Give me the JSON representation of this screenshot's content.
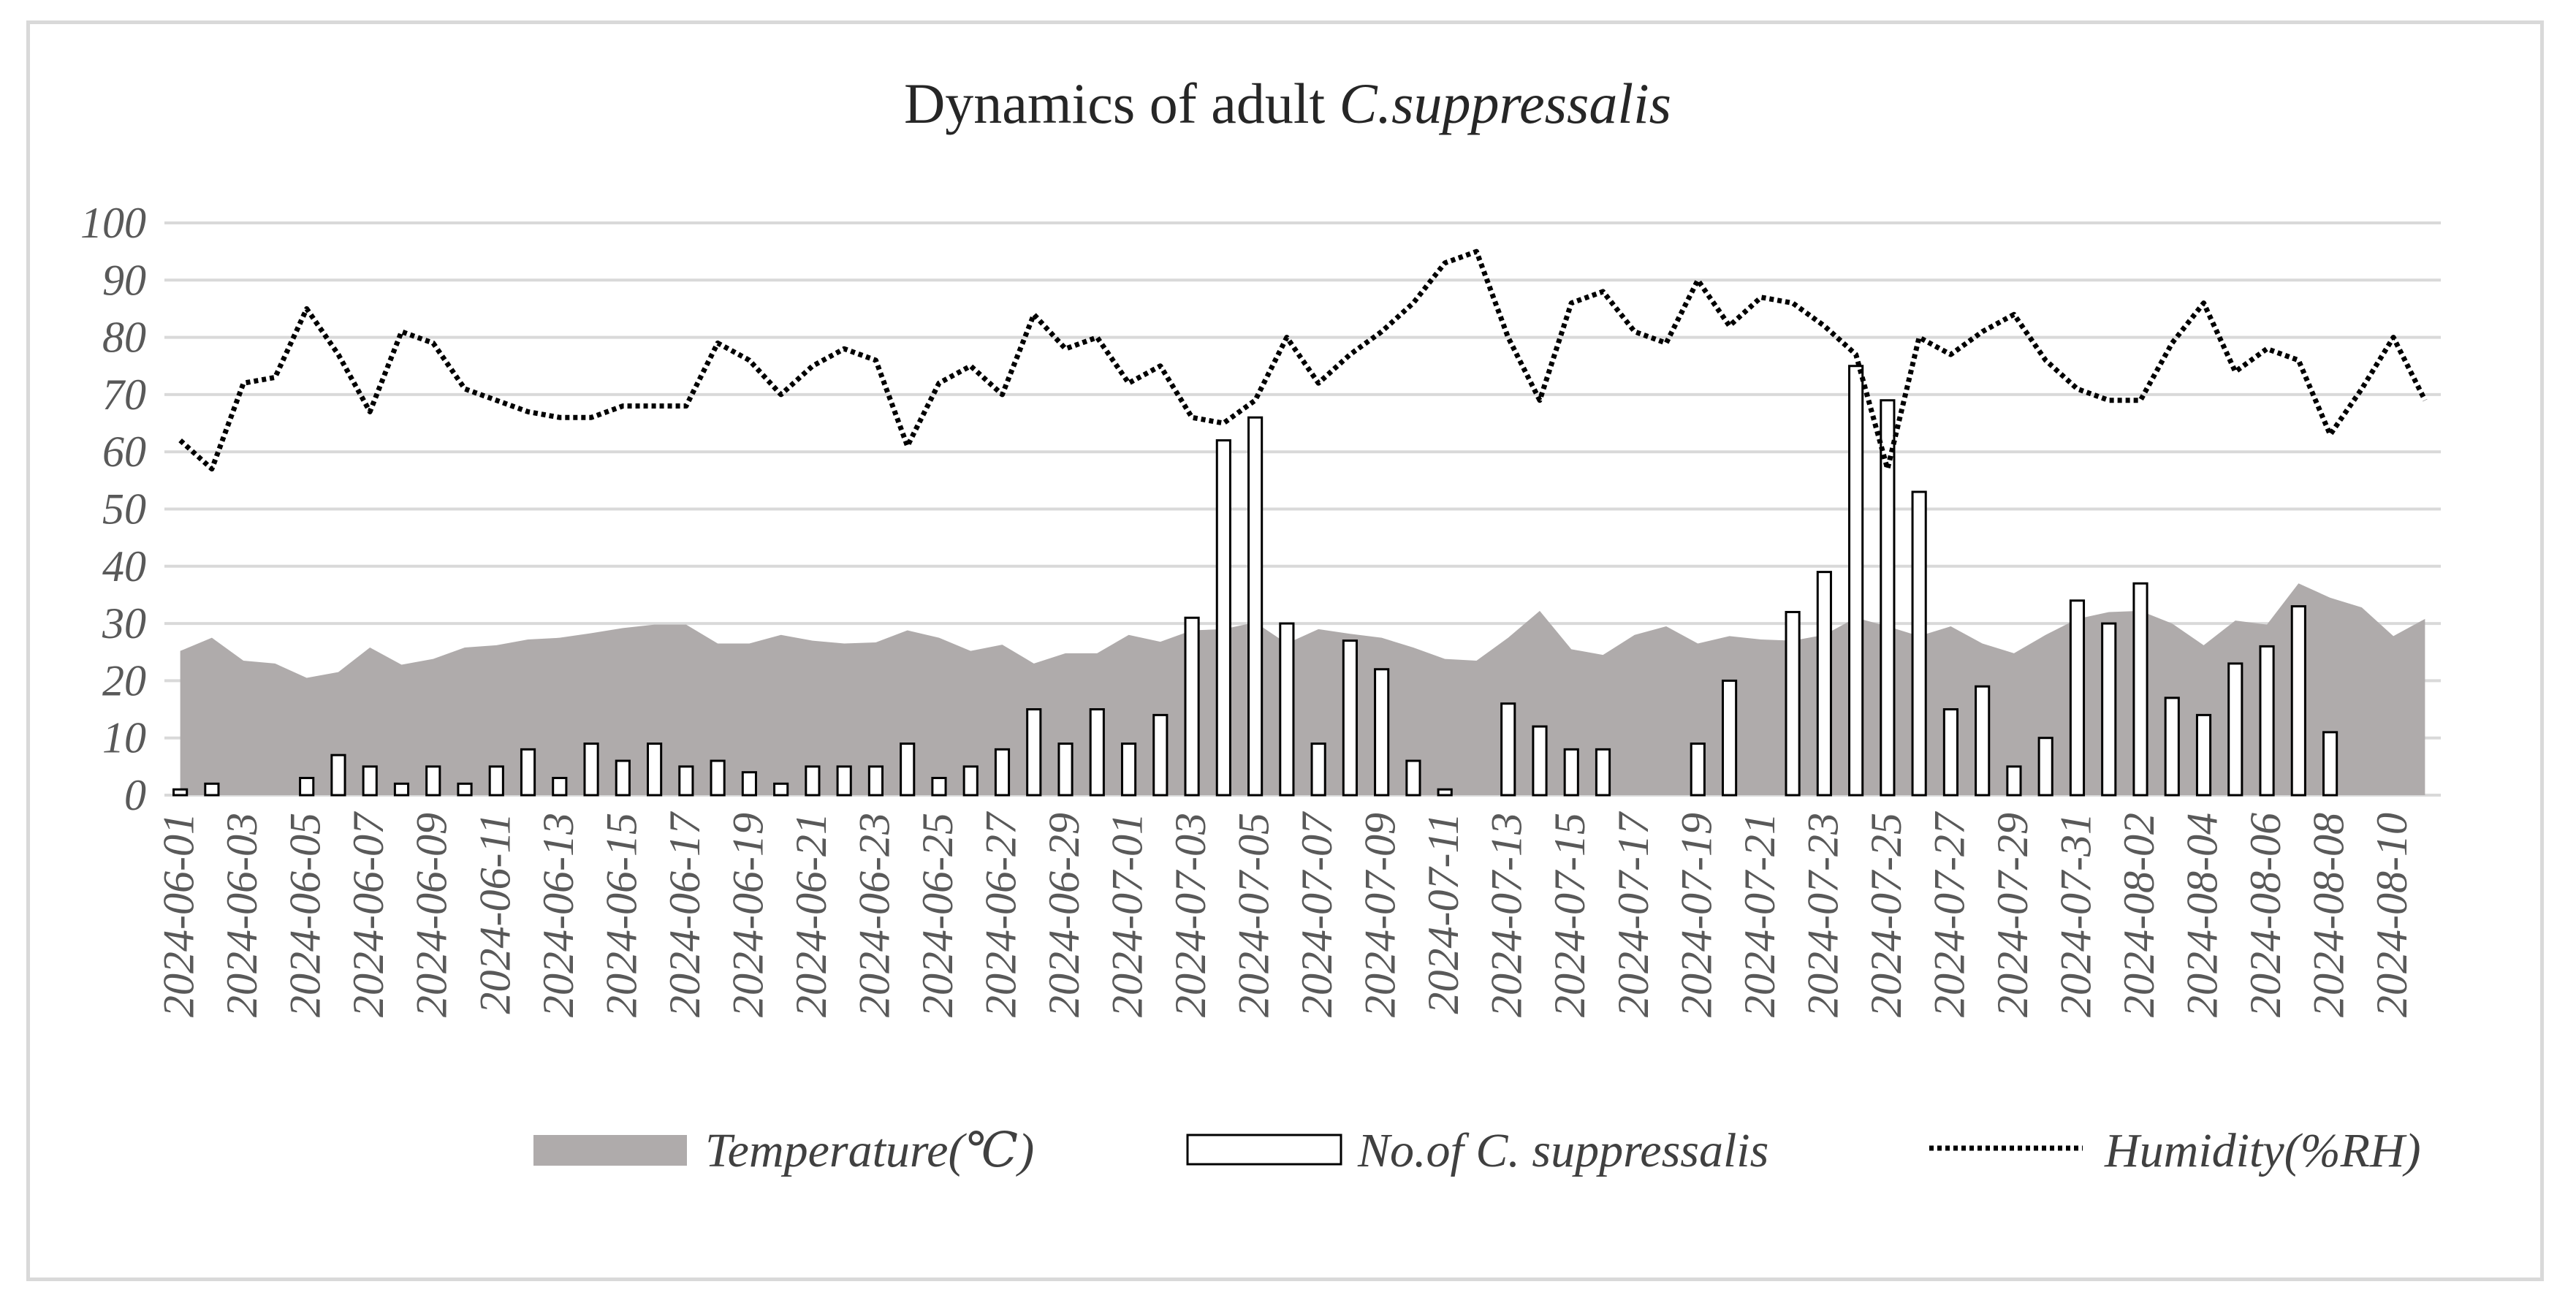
{
  "chart_data": {
    "type": "bar",
    "title_main": "Dynamics of adult ",
    "title_italic": "C.suppressalis",
    "xlabel": "",
    "ylabel": "",
    "ylim": [
      0,
      100
    ],
    "yticks": [
      0,
      10,
      20,
      30,
      40,
      50,
      60,
      70,
      80,
      90,
      100
    ],
    "grid": true,
    "legend_position": "bottom",
    "x": [
      "2024-06-01",
      "2024-06-02",
      "2024-06-03",
      "2024-06-04",
      "2024-06-05",
      "2024-06-06",
      "2024-06-07",
      "2024-06-08",
      "2024-06-09",
      "2024-06-10",
      "2024-06-11",
      "2024-06-12",
      "2024-06-13",
      "2024-06-14",
      "2024-06-15",
      "2024-06-16",
      "2024-06-17",
      "2024-06-18",
      "2024-06-19",
      "2024-06-20",
      "2024-06-21",
      "2024-06-22",
      "2024-06-23",
      "2024-06-24",
      "2024-06-25",
      "2024-06-26",
      "2024-06-27",
      "2024-06-28",
      "2024-06-29",
      "2024-06-30",
      "2024-07-01",
      "2024-07-02",
      "2024-07-03",
      "2024-07-04",
      "2024-07-05",
      "2024-07-06",
      "2024-07-07",
      "2024-07-08",
      "2024-07-09",
      "2024-07-10",
      "2024-07-11",
      "2024-07-12",
      "2024-07-13",
      "2024-07-14",
      "2024-07-15",
      "2024-07-16",
      "2024-07-17",
      "2024-07-18",
      "2024-07-19",
      "2024-07-20",
      "2024-07-21",
      "2024-07-22",
      "2024-07-23",
      "2024-07-24",
      "2024-07-25",
      "2024-07-26",
      "2024-07-27",
      "2024-07-28",
      "2024-07-29",
      "2024-07-30",
      "2024-07-31",
      "2024-08-01",
      "2024-08-02",
      "2024-08-03",
      "2024-08-04",
      "2024-08-05",
      "2024-08-06",
      "2024-08-07",
      "2024-08-08",
      "2024-08-09",
      "2024-08-10",
      "2024-08-11"
    ],
    "x_tick_labels": [
      "2024-06-01",
      "2024-06-03",
      "2024-06-05",
      "2024-06-07",
      "2024-06-09",
      "2024-06-11",
      "2024-06-13",
      "2024-06-15",
      "2024-06-17",
      "2024-06-19",
      "2024-06-21",
      "2024-06-23",
      "2024-06-25",
      "2024-06-27",
      "2024-06-29",
      "2024-07-01",
      "2024-07-03",
      "2024-07-05",
      "2024-07-07",
      "2024-07-09",
      "2024-07-11",
      "2024-07-13",
      "2024-07-15",
      "2024-07-17",
      "2024-07-19",
      "2024-07-21",
      "2024-07-23",
      "2024-07-25",
      "2024-07-27",
      "2024-07-29",
      "2024-07-31",
      "2024-08-02",
      "2024-08-04",
      "2024-08-06",
      "2024-08-08",
      "2024-08-10"
    ],
    "series": [
      {
        "name": "Temperature(℃)",
        "type": "area",
        "color": "#afabab",
        "values": [
          25.2,
          27.5,
          23.5,
          23.0,
          20.5,
          21.5,
          25.8,
          22.8,
          23.8,
          25.8,
          26.2,
          27.2,
          27.5,
          28.3,
          29.2,
          29.8,
          29.8,
          26.5,
          26.5,
          28.0,
          27.0,
          26.5,
          26.7,
          28.8,
          27.5,
          25.2,
          26.3,
          23.0,
          24.8,
          24.8,
          28.0,
          26.8,
          28.8,
          29.0,
          30.2,
          26.5,
          29.0,
          28.2,
          27.5,
          25.8,
          23.8,
          23.5,
          27.5,
          32.2,
          25.5,
          24.5,
          28.0,
          29.5,
          26.5,
          27.8,
          27.2,
          27.0,
          28.0,
          31.0,
          29.5,
          27.8,
          29.5,
          26.5,
          24.8,
          28.0,
          30.8,
          32.0,
          32.2,
          30.0,
          26.2,
          30.5,
          29.8,
          37.0,
          34.5,
          32.8,
          27.8,
          30.8
        ]
      },
      {
        "name": "No.of C. suppressalis",
        "type": "bar",
        "color": "#ffffff",
        "values": [
          1,
          2,
          0,
          0,
          3,
          7,
          5,
          2,
          5,
          2,
          5,
          8,
          3,
          9,
          6,
          9,
          5,
          6,
          4,
          2,
          5,
          5,
          5,
          9,
          3,
          5,
          8,
          15,
          9,
          15,
          9,
          14,
          31,
          62,
          66,
          30,
          9,
          27,
          22,
          6,
          1,
          0,
          16,
          12,
          8,
          8,
          0,
          0,
          9,
          20,
          0,
          32,
          39,
          75,
          69,
          53,
          15,
          19,
          5,
          10,
          34,
          30,
          37,
          17,
          14,
          23,
          26,
          33,
          11,
          0,
          0,
          0
        ]
      },
      {
        "name": "Humidity(%RH)",
        "type": "line",
        "color": "#000000",
        "values": [
          62,
          57,
          72,
          73,
          85,
          77,
          67,
          81,
          79,
          71,
          69,
          67,
          66,
          66,
          68,
          68,
          68,
          79,
          76,
          70,
          75,
          78,
          76,
          61,
          72,
          75,
          70,
          84,
          78,
          80,
          72,
          75,
          66,
          65,
          69,
          80,
          72,
          77,
          81,
          86,
          93,
          95,
          80,
          69,
          86,
          88,
          81,
          79,
          90,
          82,
          87,
          86,
          82,
          77,
          57,
          80,
          77,
          81,
          84,
          76,
          71,
          69,
          69,
          79,
          86,
          74,
          78,
          76,
          63,
          71,
          80,
          69
        ]
      }
    ]
  }
}
